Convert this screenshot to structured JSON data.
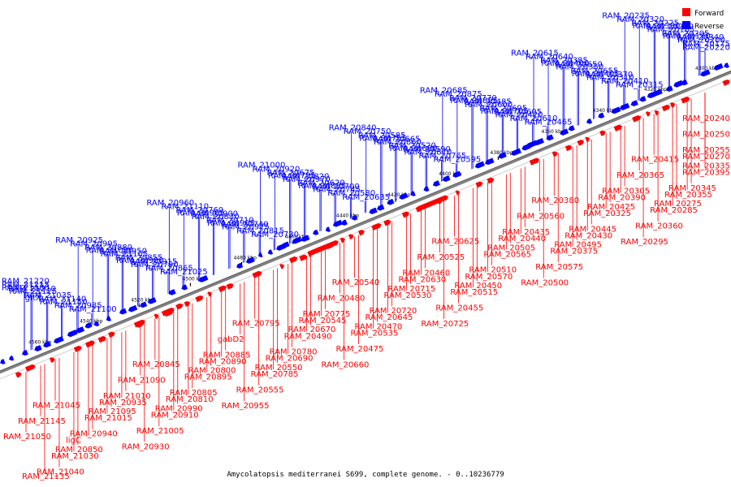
{
  "colors": {
    "forward": "#ff0000",
    "reverse": "#0000ff",
    "backbone": "#808080"
  },
  "legend": {
    "forward": "Forward",
    "reverse": "Reverse"
  },
  "caption": "Amycolatopsis mediterranei S699, complete genome. - 0..10236779",
  "ticks": [
    "4300 kbp",
    "4320 kbp",
    "4340 kbp",
    "4360 kbp",
    "4380 kbp",
    "4400 kbp",
    "4420 kbp",
    "4440 kbp",
    "4460 kbp",
    "4480 kbp",
    "4500 kbp",
    "4520 kbp",
    "4540 kbp",
    "4560 kbp"
  ],
  "reverse_genes": [
    "RAM_20220",
    "RAM_20175",
    "RAM_20200",
    "RAM_20170",
    "RAM_20340",
    "RAM_20205",
    "RAM_20185",
    "RAM_20330",
    "RAM_20290",
    "RAM_20225",
    "RAM_20320",
    "RAM_20235",
    "RAM_20315",
    "RAM_20410",
    "RAM_20310",
    "RAM_20405",
    "RAM_20370",
    "RAM_20655",
    "RAM_20350",
    "RAM_20400",
    "RAM_20650",
    "RAM_20385",
    "RAM_20640",
    "RAM_20615",
    "RAM_20465",
    "RAM_20610",
    "RAM_20420",
    "RAM_20705",
    "RAM_20605",
    "RAM_20695",
    "RAM_20600",
    "RAM_20825",
    "RAM_20485",
    "RAM_20770",
    "RAM_20875",
    "RAM_20685",
    "RAM_20595",
    "RAM_20765",
    "RAM_20870",
    "RAM_20680",
    "RAM_20590",
    "RAM_20520",
    "RAM_20860",
    "RAM_20755",
    "RAM_20665",
    "RAM_20585",
    "RAM_20750",
    "RAM_20840",
    "RAM_20635",
    "RAM_20580",
    "RAM_20745",
    "RAM_20835",
    "RAM_20700",
    "RAM_20620",
    "RAM_20970",
    "RAM_20735",
    "RAM_20820",
    "RAM_20675",
    "RAM_20920",
    "RAM_21000",
    "RAM_20730",
    "RAM_20815",
    "RAM_20975",
    "RAM_20905",
    "RAM_20740",
    "RAM_20710",
    "RAM_20830",
    "RAM_20965",
    "RAM_20900",
    "RAM_20760",
    "RAM_21110",
    "RAM_20960",
    "RAM_21025",
    "RAM_20865",
    "RAM_20790",
    "RAM_20980",
    "RAM_20915",
    "RAM_20855",
    "RAM_21105",
    "RAM_21020",
    "RAM_20950",
    "RAM_20880",
    "RAM_20995",
    "RAM_20925",
    "RAM_21100",
    "RAM_20985",
    "RAM_21150",
    "gltX",
    "RAM_21140",
    "RAM_21035",
    "RAM_21125",
    "RAM_21180",
    "RAM_21210",
    "RAM_21215",
    "RAM_21220"
  ],
  "forward_genes": [
    "RAM_20240",
    "RAM_20250",
    "RAM_20255",
    "RAM_20335",
    "RAM_20270",
    "RAM_20395",
    "RAM_20345",
    "RAM_20275",
    "RAM_20355",
    "RAM_20285",
    "RAM_20360",
    "RAM_20295",
    "RAM_20415",
    "RAM_20365",
    "RAM_20305",
    "RAM_20425",
    "RAM_20390",
    "RAM_20325",
    "RAM_20445",
    "RAM_20495",
    "RAM_20430",
    "RAM_20375",
    "RAM_20575",
    "RAM_20500",
    "RAM_20380",
    "RAM_20560",
    "RAM_20435",
    "RAM_20505",
    "RAM_20440",
    "RAM_20565",
    "RAM_20510",
    "RAM_20450",
    "RAM_20570",
    "RAM_20515",
    "RAM_20455",
    "RAM_20725",
    "RAM_20625",
    "RAM_20525",
    "RAM_20460",
    "RAM_20715",
    "RAM_20630",
    "RAM_20530",
    "RAM_20720",
    "RAM_20470",
    "RAM_20645",
    "RAM_20535",
    "RAM_20475",
    "RAM_20660",
    "RAM_20540",
    "RAM_20480",
    "RAM_20775",
    "RAM_20670",
    "RAM_20545",
    "RAM_20490",
    "RAM_20780",
    "RAM_20550",
    "RAM_20690",
    "RAM_20785",
    "RAM_20555",
    "RAM_20955",
    "RAM_20795",
    "gabD2",
    "RAM_20885",
    "RAM_20800",
    "RAM_20890",
    "RAM_20895",
    "RAM_20805",
    "RAM_20990",
    "RAM_20810",
    "RAM_20910",
    "RAM_21005",
    "RAM_20930",
    "RAM_20845",
    "RAM_21090",
    "RAM_21010",
    "RAM_21095",
    "RAM_20935",
    "RAM_21015",
    "RAM_20940",
    "RAM_20850",
    "ligC",
    "RAM_21030",
    "RAM_21040",
    "RAM_21135",
    "RAM_21045",
    "RAM_21145",
    "RAM_21050"
  ]
}
